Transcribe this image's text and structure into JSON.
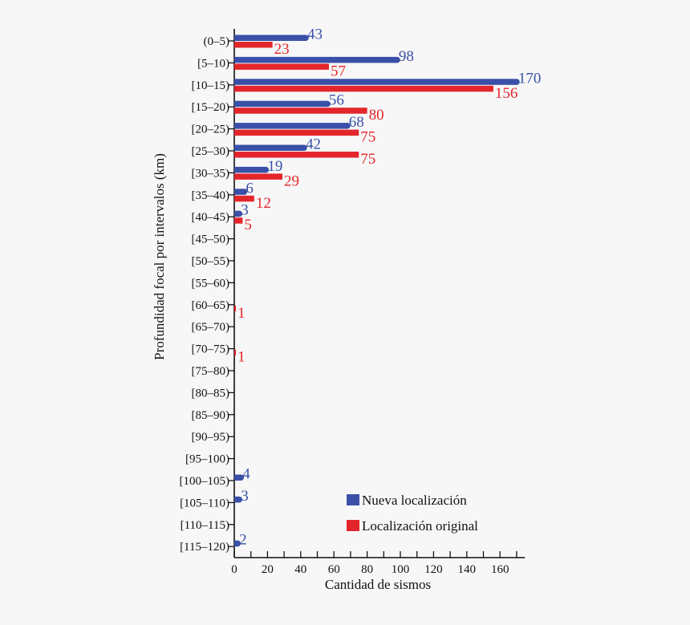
{
  "chart_data": {
    "type": "bar",
    "orientation": "horizontal",
    "categories": [
      "(0–5)",
      "[5–10)",
      "[10–15)",
      "[15–20)",
      "[20–25)",
      "[25–30)",
      "[30–35)",
      "[35–40)",
      "[40–45)",
      "[45–50)",
      "[50–55)",
      "[55–60)",
      "[60–65)",
      "[65–70)",
      "[70–75)",
      "[75–80)",
      "[80–85)",
      "[85–90)",
      "[90–95)",
      "[95–100)",
      "[100–105)",
      "[105–110)",
      "[110–115)",
      "[115–120)"
    ],
    "series": [
      {
        "name": "Nueva localización",
        "color": "#3a50a8",
        "values": [
          43,
          98,
          170,
          56,
          68,
          42,
          19,
          6,
          3,
          0,
          0,
          0,
          0,
          0,
          0,
          0,
          0,
          0,
          0,
          0,
          4,
          3,
          0,
          2
        ]
      },
      {
        "name": "Localización original",
        "color": "#e3262b",
        "values": [
          23,
          57,
          156,
          80,
          75,
          75,
          29,
          12,
          5,
          0,
          0,
          0,
          1,
          0,
          1,
          0,
          0,
          0,
          0,
          0,
          0,
          0,
          0,
          0
        ]
      }
    ],
    "xlabel": "Cantidad de sismos",
    "ylabel": "Profundidad focal por intervalos (km)",
    "xlim": [
      0,
      175
    ],
    "xticks": [
      "0",
      "20",
      "40",
      "60",
      "80",
      "100",
      "120",
      "140",
      "160"
    ],
    "grid": false,
    "legend_position": "bottom-right"
  }
}
